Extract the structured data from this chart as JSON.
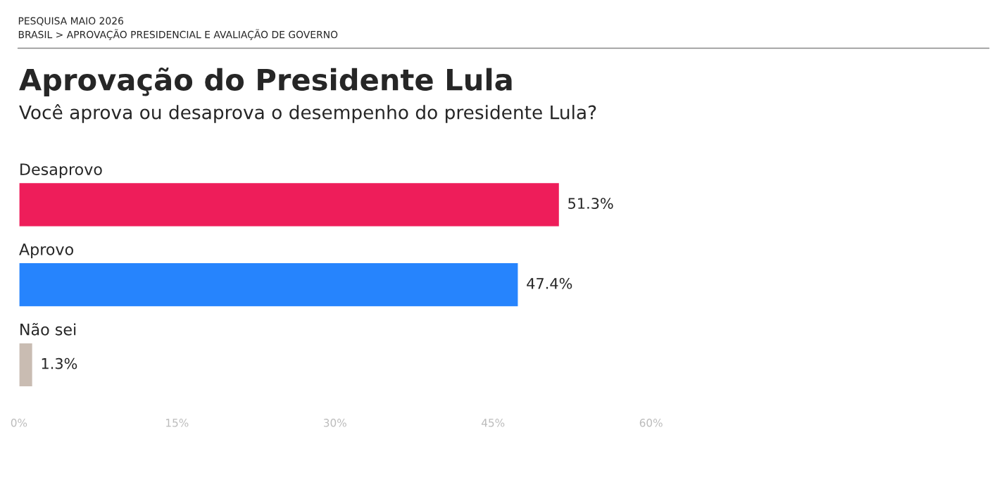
{
  "chart_data": {
    "type": "bar",
    "orientation": "horizontal",
    "title": "Aprovação do Presidente Lula",
    "subtitle": "Você aprova ou desaprova o desempenho do presidente Lula?",
    "annotations": [
      "PESQUISA MAIO 2026",
      "BRASIL > APROVAÇÃO PRESIDENCIAL E AVALIAÇÃO DE GOVERNO"
    ],
    "categories": [
      "Desaprovo",
      "Aprovo",
      "Não sei"
    ],
    "values": [
      51.3,
      47.4,
      1.3
    ],
    "colors": [
      "#ee1d5a",
      "#2684fd",
      "#c9bcb2"
    ],
    "value_labels": [
      "51.3%",
      "47.4%",
      "1.3%"
    ],
    "xlim": [
      0,
      60
    ],
    "xticks": [
      {
        "value": 0,
        "label": "0%"
      },
      {
        "value": 15,
        "label": "15%"
      },
      {
        "value": 30,
        "label": "30%"
      },
      {
        "value": 45,
        "label": "45%"
      },
      {
        "value": 60,
        "label": "60%"
      }
    ],
    "grid": false,
    "legend": false
  }
}
